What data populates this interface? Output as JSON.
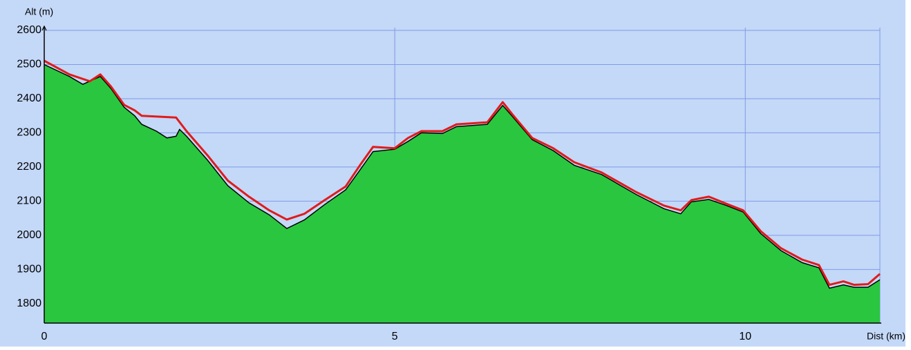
{
  "chart_data": {
    "type": "area",
    "x_label": "Dist (km)",
    "y_label": "Alt (m)",
    "xlim": [
      0,
      11.92
    ],
    "xticks": [
      0,
      5,
      10
    ],
    "ylim": [
      1743,
      2600
    ],
    "yticks": [
      1800,
      1900,
      2000,
      2100,
      2200,
      2300,
      2400,
      2500,
      2600
    ],
    "grid": true,
    "background": "#c4d8f8",
    "grid_color": "#7f9ae6",
    "series": [
      {
        "kind": "area",
        "color": "#2bc63f",
        "line_color": "#000000",
        "x": [
          0,
          0.36,
          0.55,
          0.8,
          0.95,
          1.14,
          1.29,
          1.39,
          1.6,
          1.75,
          1.88,
          1.93,
          2.03,
          2.33,
          2.62,
          2.92,
          3.21,
          3.46,
          3.71,
          4.0,
          4.3,
          4.5,
          4.69,
          5.0,
          5.19,
          5.38,
          5.68,
          5.88,
          6.32,
          6.54,
          6.67,
          6.96,
          7.26,
          7.56,
          7.95,
          8.44,
          8.84,
          9.08,
          9.23,
          9.48,
          9.72,
          9.97,
          10.22,
          10.51,
          10.81,
          11.05,
          11.2,
          11.4,
          11.55,
          11.75,
          11.92
        ],
        "values": [
          2500,
          2465,
          2442,
          2465,
          2430,
          2375,
          2350,
          2325,
          2305,
          2285,
          2290,
          2310,
          2290,
          2220,
          2145,
          2095,
          2060,
          2020,
          2045,
          2090,
          2133,
          2190,
          2245,
          2252,
          2275,
          2300,
          2298,
          2318,
          2325,
          2380,
          2350,
          2280,
          2248,
          2205,
          2178,
          2120,
          2078,
          2063,
          2098,
          2105,
          2088,
          2068,
          2005,
          1955,
          1920,
          1905,
          1845,
          1855,
          1848,
          1848,
          1870
        ]
      },
      {
        "kind": "line",
        "color": "#e01b1b",
        "x": [
          0,
          0.36,
          0.65,
          0.8,
          0.95,
          1.14,
          1.29,
          1.39,
          1.88,
          2.03,
          2.33,
          2.62,
          2.92,
          3.21,
          3.46,
          3.71,
          4.0,
          4.3,
          4.5,
          4.69,
          5.0,
          5.19,
          5.38,
          5.68,
          5.88,
          6.32,
          6.54,
          6.67,
          6.96,
          7.26,
          7.56,
          7.95,
          8.44,
          8.84,
          9.08,
          9.23,
          9.48,
          9.72,
          9.97,
          10.22,
          10.51,
          10.81,
          11.05,
          11.2,
          11.4,
          11.55,
          11.75,
          11.92
        ],
        "values": [
          2511,
          2471,
          2451,
          2471,
          2436,
          2382,
          2366,
          2350,
          2345,
          2305,
          2234,
          2160,
          2113,
          2073,
          2046,
          2063,
          2103,
          2143,
          2204,
          2259,
          2255,
          2285,
          2305,
          2305,
          2325,
          2331,
          2390,
          2356,
          2285,
          2255,
          2214,
          2184,
          2127,
          2087,
          2073,
          2103,
          2113,
          2093,
          2073,
          2012,
          1962,
          1929,
          1913,
          1855,
          1865,
          1855,
          1857,
          1887
        ]
      }
    ]
  }
}
